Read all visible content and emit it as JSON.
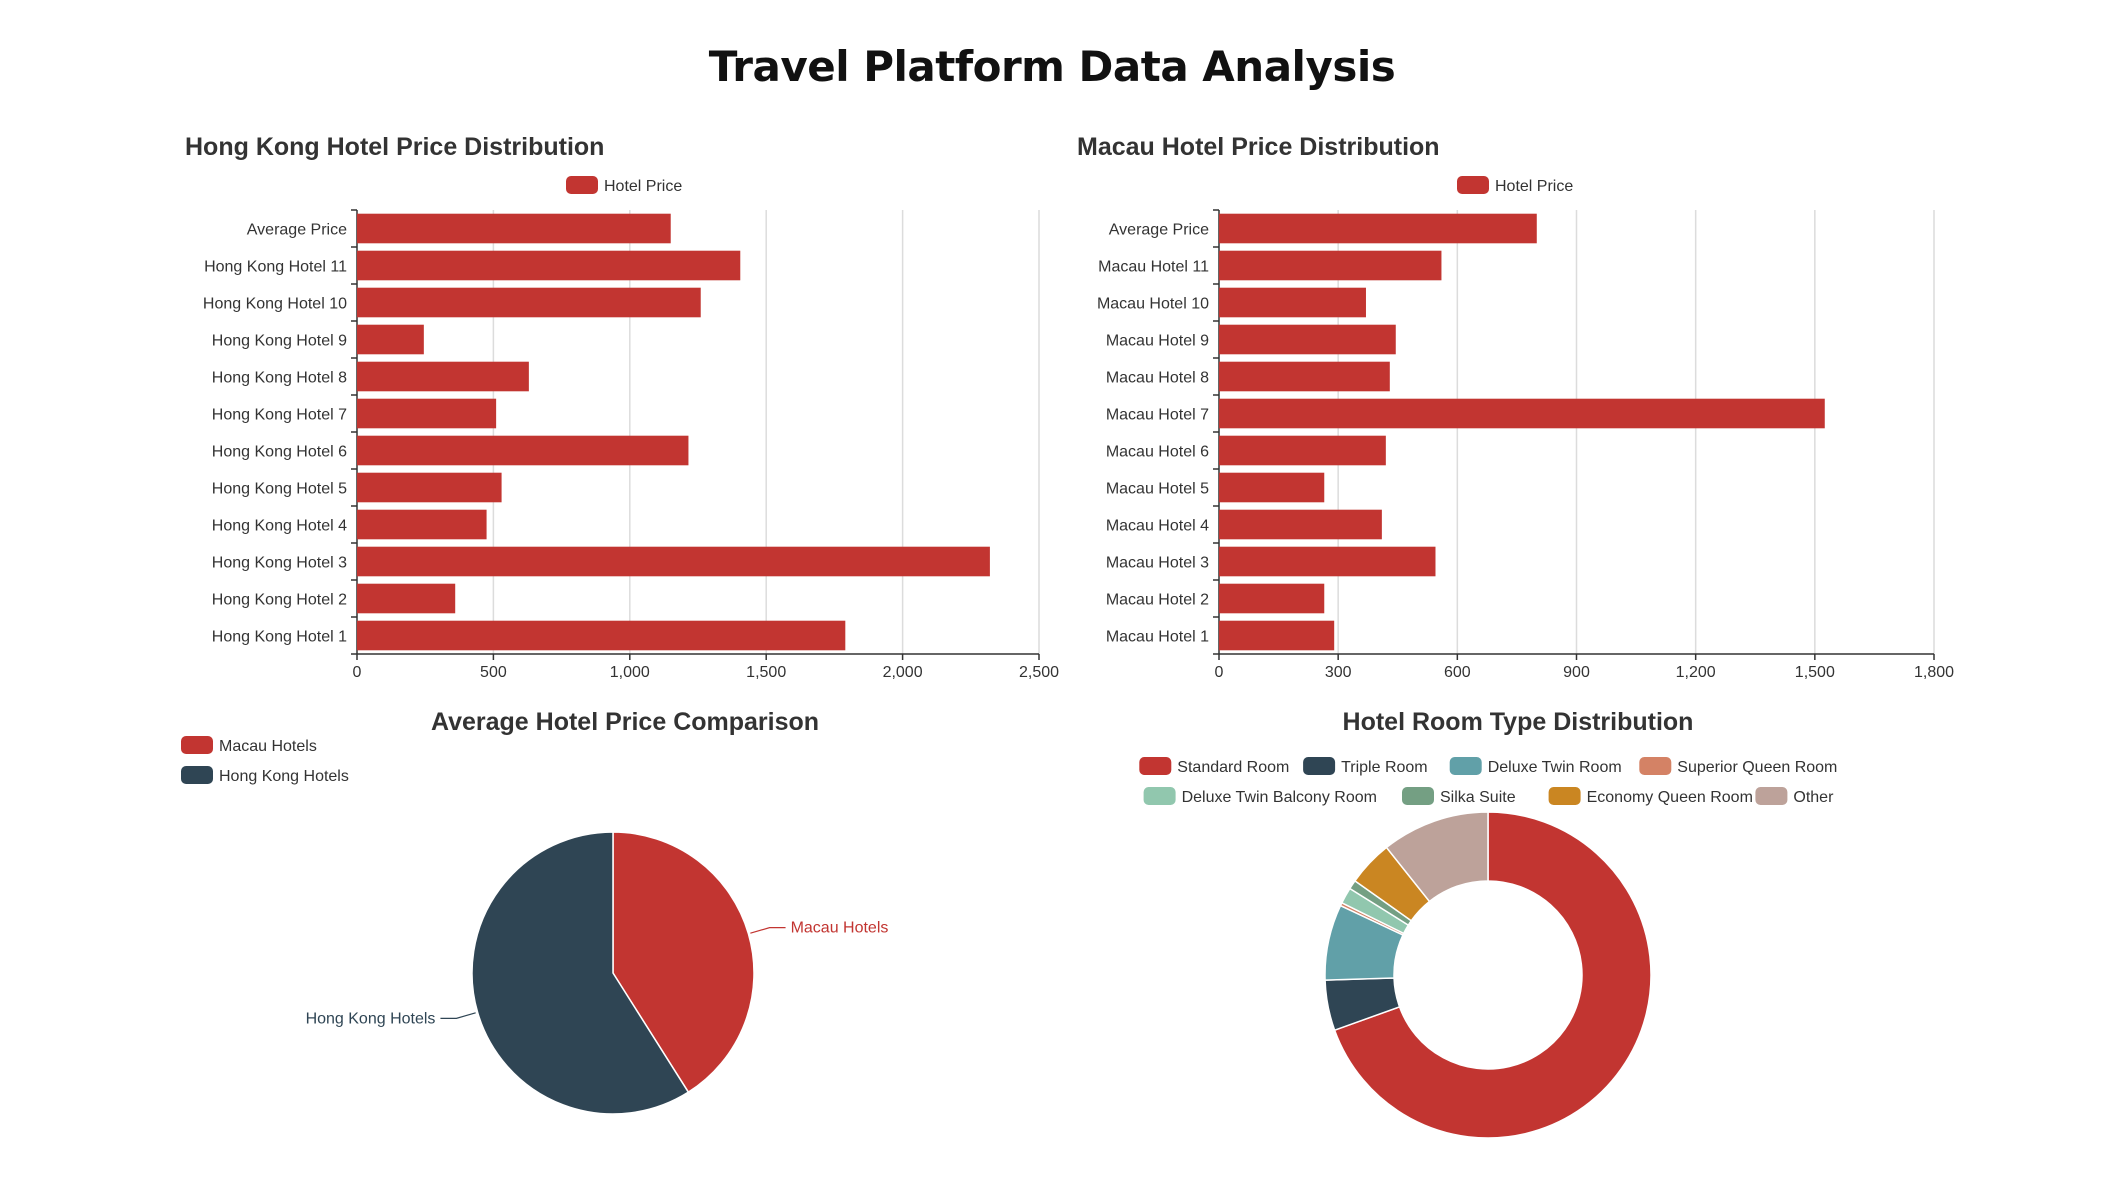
{
  "title": "Travel Platform Data Analysis",
  "colors": {
    "bar": "#c23531",
    "grid": "#dcdcdc",
    "axis": "#333333",
    "text": "#333333"
  },
  "chart_data": [
    {
      "id": "hk",
      "type": "bar",
      "orientation": "horizontal",
      "title": "Hong Kong Hotel Price Distribution",
      "legend": "Hotel Price",
      "legend_position": "top-center",
      "grid": true,
      "categories": [
        "Hong Kong Hotel 1",
        "Hong Kong Hotel 2",
        "Hong Kong Hotel 3",
        "Hong Kong Hotel 4",
        "Hong Kong Hotel 5",
        "Hong Kong Hotel 6",
        "Hong Kong Hotel 7",
        "Hong Kong Hotel 8",
        "Hong Kong Hotel 9",
        "Hong Kong Hotel 10",
        "Hong Kong Hotel 11",
        "Average Price"
      ],
      "values": [
        1790,
        360,
        2320,
        475,
        530,
        1215,
        510,
        630,
        245,
        1260,
        1405,
        1150
      ],
      "xlim": [
        0,
        2500
      ],
      "ticks": [
        0,
        500,
        1000,
        1500,
        2000,
        2500
      ],
      "tick_labels": [
        "0",
        "500",
        "1,000",
        "1,500",
        "2,000",
        "2,500"
      ]
    },
    {
      "id": "macau",
      "type": "bar",
      "orientation": "horizontal",
      "title": "Macau Hotel Price Distribution",
      "legend": "Hotel Price",
      "legend_position": "top-center",
      "grid": true,
      "categories": [
        "Macau Hotel 1",
        "Macau Hotel 2",
        "Macau Hotel 3",
        "Macau Hotel 4",
        "Macau Hotel 5",
        "Macau Hotel 6",
        "Macau Hotel 7",
        "Macau Hotel 8",
        "Macau Hotel 9",
        "Macau Hotel 10",
        "Macau Hotel 11",
        "Average Price"
      ],
      "values": [
        290,
        265,
        545,
        410,
        265,
        420,
        1525,
        430,
        445,
        370,
        560,
        800
      ],
      "xlim": [
        0,
        1800
      ],
      "ticks": [
        0,
        300,
        600,
        900,
        1200,
        1500,
        1800
      ],
      "tick_labels": [
        "0",
        "300",
        "600",
        "900",
        "1,200",
        "1,500",
        "1,800"
      ]
    },
    {
      "id": "avg",
      "type": "pie",
      "title": "Average Hotel Price Comparison",
      "legend_position": "top-left",
      "slices": [
        {
          "name": "Macau Hotels",
          "value": 800,
          "color": "#c23531"
        },
        {
          "name": "Hong Kong Hotels",
          "value": 1150,
          "color": "#2f4554"
        }
      ]
    },
    {
      "id": "rooms",
      "type": "pie",
      "style": "donut",
      "title": "Hotel Room Type Distribution",
      "legend_position": "top-center",
      "slices": [
        {
          "name": "Standard Room",
          "value": 69.5,
          "color": "#c23531"
        },
        {
          "name": "Triple Room",
          "value": 5,
          "color": "#2f4554"
        },
        {
          "name": "Deluxe Twin Room",
          "value": 7.5,
          "color": "#61a0a8"
        },
        {
          "name": "Superior Queen Room",
          "value": 0.3,
          "color": "#d48265"
        },
        {
          "name": "Deluxe Twin Balcony Room",
          "value": 1.6,
          "color": "#91c7ae"
        },
        {
          "name": "Silka Suite",
          "value": 0.9,
          "color": "#749f83"
        },
        {
          "name": "Economy Queen Room",
          "value": 4.5,
          "color": "#ca8622"
        },
        {
          "name": "Other",
          "value": 10.7,
          "color": "#bda29a"
        }
      ]
    }
  ]
}
